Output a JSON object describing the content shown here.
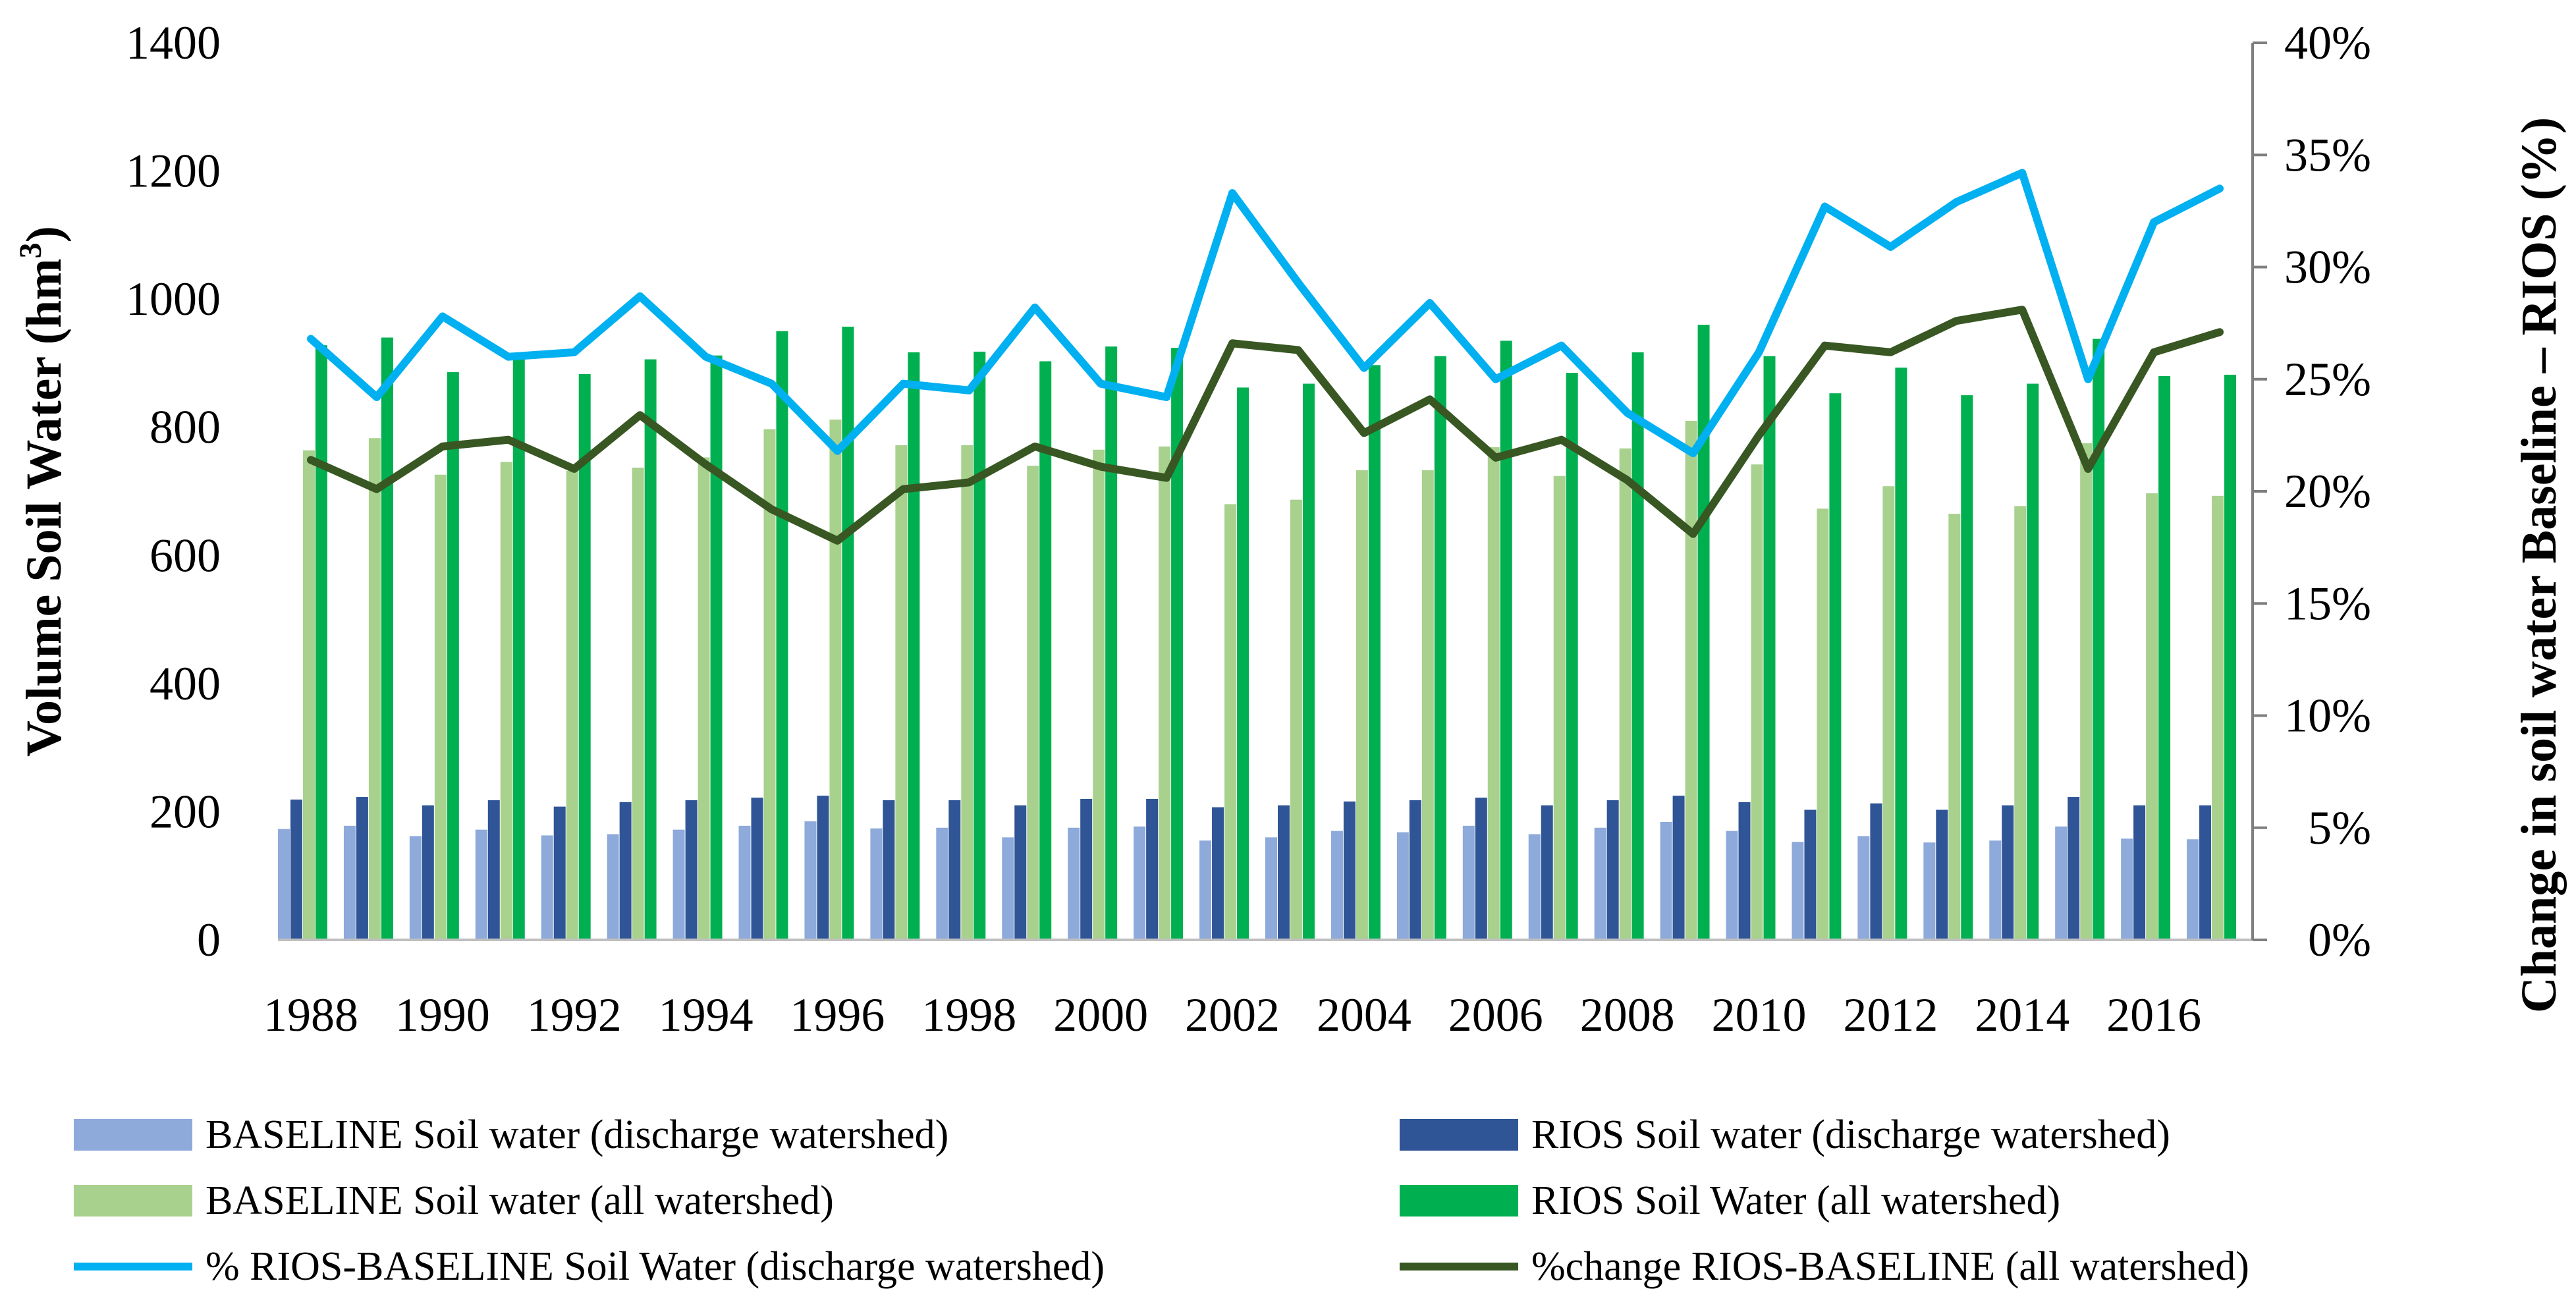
{
  "chart_data": {
    "type": "bar",
    "title": "",
    "xlabel": "",
    "ylabel": "Volume  Soil Water (hm³)",
    "ylabel_parts": {
      "main": "Volume  Soil Water (hm",
      "sup": "3",
      "end": ")"
    },
    "y2label": "Change in soil water Baseline – RIOS (%)",
    "ylim": [
      0,
      1400
    ],
    "y2lim": [
      0,
      0.4
    ],
    "yticks": [
      "0",
      "200",
      "400",
      "600",
      "800",
      "1000",
      "1200",
      "1400"
    ],
    "y2ticks": [
      "0%",
      "5%",
      "10%",
      "15%",
      "20%",
      "25%",
      "30%",
      "35%",
      "40%"
    ],
    "years": [
      1988,
      1989,
      1990,
      1991,
      1992,
      1993,
      1994,
      1995,
      1996,
      1997,
      1998,
      1999,
      2000,
      2001,
      2002,
      2003,
      2004,
      2005,
      2006,
      2007,
      2008,
      2009,
      2010,
      2011,
      2012,
      2013,
      2014,
      2015,
      2016,
      2017
    ],
    "xtick_labels": [
      "1988",
      "1990",
      "1992",
      "1994",
      "1996",
      "1998",
      "2000",
      "2002",
      "2004",
      "2006",
      "2008",
      "2010",
      "2012",
      "2014",
      "2016"
    ],
    "series": [
      {
        "name": "BASELINE Soil water (discharge watershed)",
        "kind": "bar",
        "axis": "left",
        "color": "#8eaadb",
        "values": [
          173,
          178,
          162,
          172,
          163,
          165,
          172,
          178,
          185,
          174,
          175,
          160,
          175,
          177,
          155,
          160,
          170,
          168,
          178,
          165,
          175,
          184,
          170,
          153,
          162,
          152,
          155,
          177,
          158,
          157
        ]
      },
      {
        "name": "RIOS Soil water (discharge watershed)",
        "kind": "bar",
        "axis": "left",
        "color": "#2f5597",
        "values": [
          219,
          223,
          210,
          218,
          208,
          215,
          218,
          222,
          225,
          218,
          218,
          210,
          220,
          220,
          207,
          210,
          216,
          218,
          222,
          210,
          218,
          225,
          215,
          203,
          213,
          203,
          210,
          223,
          210,
          210
        ]
      },
      {
        "name": "BASELINE Soil water (all watershed)",
        "kind": "bar",
        "axis": "left",
        "color": "#a9d18e",
        "values": [
          764,
          783,
          726,
          746,
          732,
          737,
          753,
          797,
          812,
          772,
          772,
          740,
          765,
          770,
          680,
          687,
          733,
          733,
          769,
          724,
          767,
          810,
          742,
          673,
          708,
          665,
          677,
          775,
          697,
          693
        ]
      },
      {
        "name": "RIOS Soil Water (all watershed)",
        "kind": "bar",
        "axis": "left",
        "color": "#00b050",
        "values": [
          928,
          940,
          886,
          913,
          883,
          906,
          912,
          950,
          957,
          917,
          918,
          903,
          926,
          924,
          862,
          868,
          897,
          911,
          935,
          885,
          917,
          960,
          911,
          853,
          893,
          850,
          868,
          938,
          880,
          882
        ]
      },
      {
        "name": "% RIOS-BASELINE  Soil Water (discharge watershed)",
        "kind": "line",
        "axis": "right",
        "color": "#00b0f0",
        "values": [
          0.268,
          0.242,
          0.278,
          0.26,
          0.262,
          0.287,
          0.26,
          0.248,
          0.218,
          0.248,
          0.245,
          0.282,
          0.248,
          0.242,
          0.333,
          0.293,
          0.255,
          0.284,
          0.25,
          0.265,
          0.235,
          0.217,
          0.262,
          0.327,
          0.309,
          0.329,
          0.342,
          0.25,
          0.32,
          0.335
        ]
      },
      {
        "name": "%change RIOS-BASELINE (all watershed)",
        "kind": "line",
        "axis": "right",
        "color": "#385723",
        "values": [
          0.214,
          0.201,
          0.22,
          0.223,
          0.21,
          0.234,
          0.212,
          0.192,
          0.178,
          0.201,
          0.204,
          0.22,
          0.211,
          0.206,
          0.266,
          0.263,
          0.226,
          0.241,
          0.215,
          0.223,
          0.205,
          0.181,
          0.225,
          0.265,
          0.262,
          0.276,
          0.281,
          0.21,
          0.262,
          0.271
        ]
      }
    ],
    "legend_position": "bottom"
  }
}
